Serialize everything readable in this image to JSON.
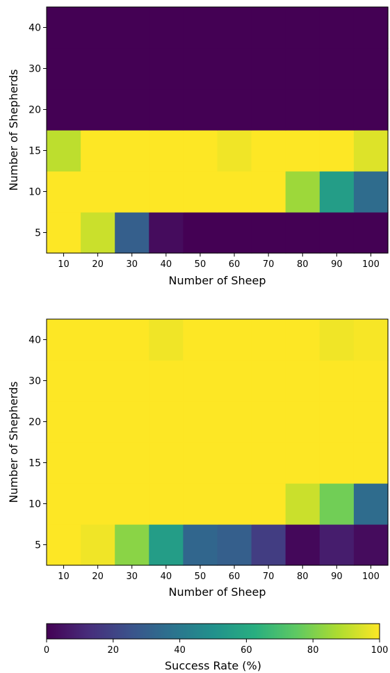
{
  "chart_data": [
    {
      "type": "heatmap",
      "xlabel": "Number of Sheep",
      "ylabel": "Number of Shepherds",
      "x_categories": [
        "10",
        "20",
        "30",
        "40",
        "50",
        "60",
        "70",
        "80",
        "90",
        "100"
      ],
      "y_categories": [
        "5",
        "10",
        "15",
        "20",
        "30",
        "40"
      ],
      "values": [
        [
          100,
          92,
          30,
          3,
          0,
          0,
          0,
          0,
          0,
          0
        ],
        [
          100,
          100,
          100,
          100,
          100,
          100,
          100,
          85,
          55,
          35
        ],
        [
          90,
          100,
          100,
          100,
          100,
          98,
          100,
          100,
          100,
          95
        ],
        [
          0,
          0,
          0,
          0,
          0,
          0,
          0,
          0,
          0,
          0
        ],
        [
          0,
          0,
          0,
          0,
          0,
          0,
          0,
          0,
          0,
          0
        ],
        [
          0,
          0,
          0,
          0,
          0,
          0,
          0,
          0,
          0,
          0
        ]
      ],
      "value_range": [
        0,
        100
      ],
      "colormap": "viridis",
      "grid": false
    },
    {
      "type": "heatmap",
      "xlabel": "Number of Sheep",
      "ylabel": "Number of Shepherds",
      "x_categories": [
        "10",
        "20",
        "30",
        "40",
        "50",
        "60",
        "70",
        "80",
        "90",
        "100"
      ],
      "y_categories": [
        "5",
        "10",
        "15",
        "20",
        "30",
        "40"
      ],
      "values": [
        [
          100,
          98,
          82,
          55,
          33,
          30,
          18,
          2,
          8,
          3
        ],
        [
          100,
          100,
          100,
          100,
          100,
          100,
          100,
          92,
          78,
          35
        ],
        [
          100,
          100,
          100,
          100,
          100,
          100,
          100,
          100,
          100,
          100
        ],
        [
          100,
          100,
          100,
          100,
          100,
          100,
          100,
          100,
          100,
          100
        ],
        [
          100,
          100,
          100,
          100,
          100,
          100,
          100,
          100,
          100,
          100
        ],
        [
          100,
          100,
          100,
          98,
          100,
          100,
          100,
          100,
          98,
          99
        ]
      ],
      "value_range": [
        0,
        100
      ],
      "colormap": "viridis",
      "grid": false
    }
  ],
  "colorbar": {
    "label": "Success Rate (%)",
    "ticks": [
      "0",
      "20",
      "40",
      "60",
      "80",
      "100"
    ],
    "range": [
      0,
      100
    ],
    "orientation": "horizontal",
    "placement": "bottom"
  }
}
